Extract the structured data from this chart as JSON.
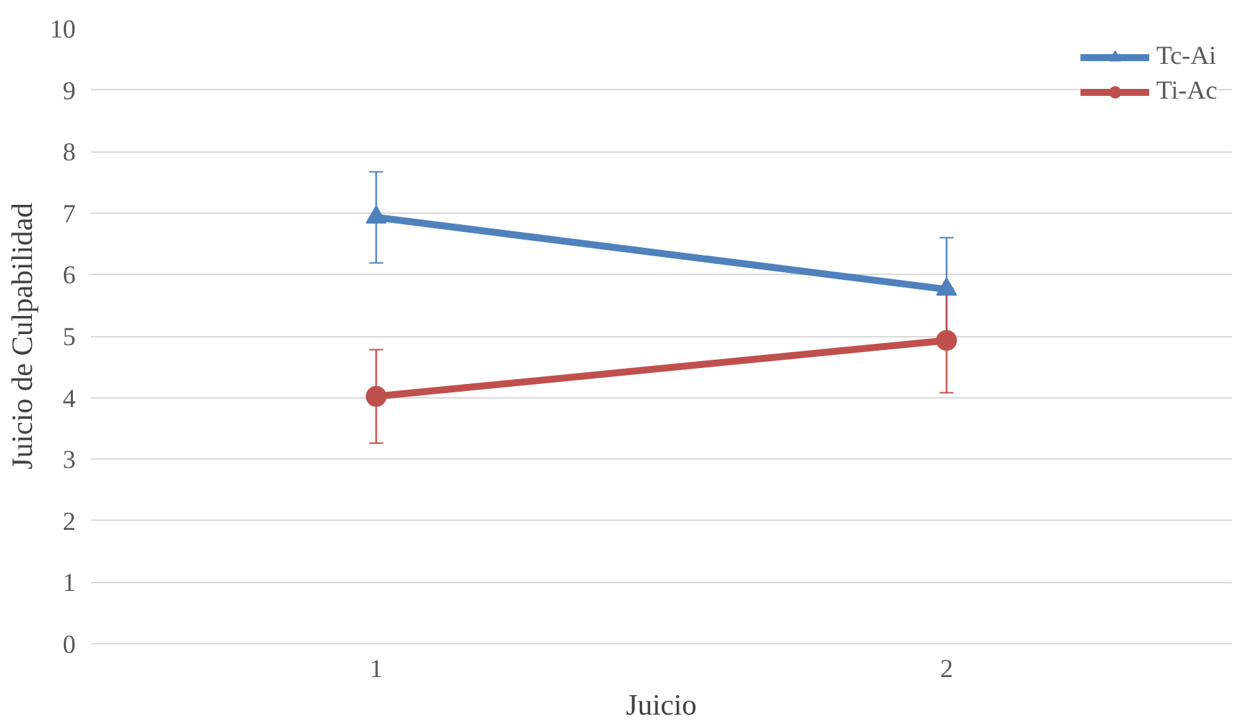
{
  "chart_data": {
    "type": "line",
    "xlabel": "Juicio",
    "ylabel": "Juicio de Culpabilidad",
    "categories": [
      "1",
      "2"
    ],
    "series": [
      {
        "name": "Tc-Ai",
        "color": "#4f81bd",
        "values": [
          6.93,
          5.76
        ],
        "errors": [
          0.74,
          0.84
        ],
        "marker": "triangle"
      },
      {
        "name": "Ti-Ac",
        "color": "#c0504d",
        "values": [
          4.02,
          4.93
        ],
        "errors": [
          0.76,
          0.85
        ],
        "marker": "circle"
      }
    ],
    "ylim": [
      0,
      10
    ],
    "yticks": [
      0,
      1,
      2,
      3,
      4,
      5,
      6,
      7,
      8,
      9,
      10
    ],
    "grid": "y",
    "legend": "top right",
    "line_style": "solid"
  }
}
